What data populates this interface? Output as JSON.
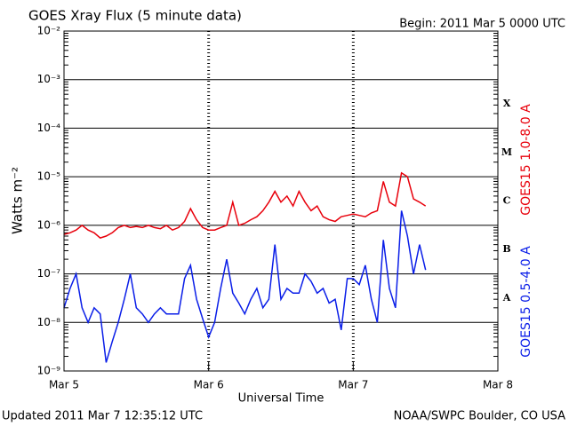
{
  "chart_data": {
    "type": "line",
    "title": "GOES Xray Flux (5 minute data)",
    "subtitle": "Begin:  2011 Mar 5 0000 UTC",
    "x_label": "Universal Time",
    "y_label": "Watts m⁻²",
    "footer_left": "Updated 2011 Mar  7 12:35:12 UTC",
    "footer_right": "NOAA/SWPC Boulder, CO USA",
    "log_y": true,
    "grid": true,
    "flare_classes": [
      "A",
      "B",
      "C",
      "M",
      "X"
    ],
    "xlim": [
      0,
      72
    ],
    "xticks": [
      {
        "value": 0,
        "label": "Mar 5"
      },
      {
        "value": 24,
        "label": "Mar 6"
      },
      {
        "value": 48,
        "label": "Mar 7"
      },
      {
        "value": 72,
        "label": "Mar 8"
      }
    ],
    "ylim": [
      1e-09,
      0.01
    ],
    "yticks": [
      {
        "value": 1e-09,
        "label": "10⁻⁹"
      },
      {
        "value": 1e-08,
        "label": "10⁻⁸"
      },
      {
        "value": 1e-07,
        "label": "10⁻⁷"
      },
      {
        "value": 1e-06,
        "label": "10⁻⁶"
      },
      {
        "value": 1e-05,
        "label": "10⁻⁵"
      },
      {
        "value": 0.0001,
        "label": "10⁻⁴"
      },
      {
        "value": 0.001,
        "label": "10⁻³"
      },
      {
        "value": 0.01,
        "label": "10⁻²"
      }
    ],
    "x": [
      0,
      1,
      2,
      3,
      4,
      5,
      6,
      7,
      8,
      9,
      10,
      11,
      12,
      13,
      14,
      15,
      16,
      17,
      18,
      19,
      20,
      21,
      22,
      23,
      24,
      25,
      26,
      27,
      28,
      29,
      30,
      31,
      32,
      33,
      34,
      35,
      36,
      37,
      38,
      39,
      40,
      41,
      42,
      43,
      44,
      45,
      46,
      47,
      48,
      49,
      50,
      51,
      52,
      53,
      54,
      55,
      56,
      57,
      58,
      59,
      60
    ],
    "series": [
      {
        "name": "GOES15 1.0-8.0 A",
        "color": "#e8000b",
        "values": [
          6.5e-07,
          7e-07,
          8e-07,
          1e-06,
          8e-07,
          7e-07,
          5.5e-07,
          6e-07,
          7e-07,
          9e-07,
          1e-06,
          9e-07,
          9.5e-07,
          9e-07,
          1e-06,
          9e-07,
          8.5e-07,
          1e-06,
          8e-07,
          9e-07,
          1.2e-06,
          2.2e-06,
          1.3e-06,
          9e-07,
          8e-07,
          8e-07,
          9e-07,
          1e-06,
          3e-06,
          1e-06,
          1.1e-06,
          1.3e-06,
          1.5e-06,
          2e-06,
          3e-06,
          5e-06,
          3e-06,
          4e-06,
          2.5e-06,
          5e-06,
          3e-06,
          2e-06,
          2.5e-06,
          1.5e-06,
          1.3e-06,
          1.2e-06,
          1.5e-06,
          1.6e-06,
          1.7e-06,
          1.6e-06,
          1.5e-06,
          1.8e-06,
          2e-06,
          8e-06,
          3e-06,
          2.5e-06,
          1.2e-05,
          1e-05,
          3.5e-06,
          3e-06,
          2.5e-06
        ]
      },
      {
        "name": "GOES15 0.5-4.0 A",
        "color": "#0a1ee8",
        "values": [
          2e-08,
          5e-08,
          1e-07,
          2e-08,
          1e-08,
          2e-08,
          1.5e-08,
          1.5e-09,
          4e-09,
          1e-08,
          3e-08,
          1e-07,
          2e-08,
          1.5e-08,
          1e-08,
          1.5e-08,
          2e-08,
          1.5e-08,
          1.5e-08,
          1.5e-08,
          8e-08,
          1.5e-07,
          3e-08,
          1.2e-08,
          5e-09,
          1e-08,
          5e-08,
          2e-07,
          4e-08,
          2.5e-08,
          1.5e-08,
          3e-08,
          5e-08,
          2e-08,
          3e-08,
          4e-07,
          3e-08,
          5e-08,
          4e-08,
          4e-08,
          1e-07,
          7e-08,
          4e-08,
          5e-08,
          2.5e-08,
          3e-08,
          7e-09,
          8e-08,
          8e-08,
          6e-08,
          1.5e-07,
          3e-08,
          1e-08,
          5e-07,
          5e-08,
          2e-08,
          2e-06,
          6e-07,
          1e-07,
          4e-07,
          1.2e-07
        ]
      }
    ]
  }
}
